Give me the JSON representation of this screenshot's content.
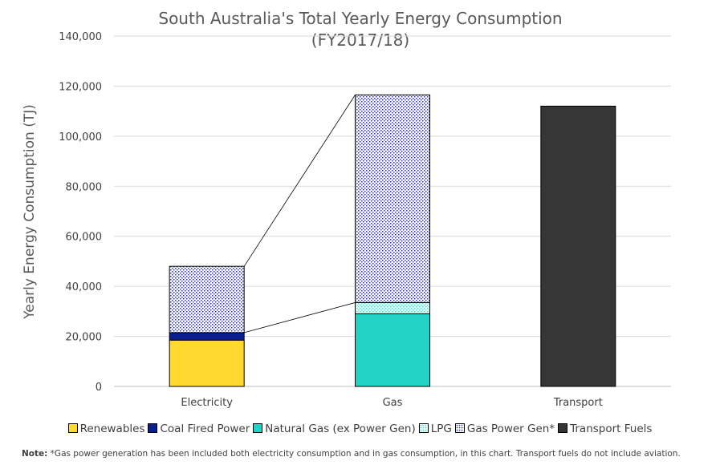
{
  "chart_data": {
    "type": "bar",
    "stacked": true,
    "title": "South Australia's Total Yearly Energy Consumption",
    "subtitle": "(FY2017/18)",
    "xlabel": "",
    "ylabel": "Yearly Energy Consumption (TJ)",
    "ylim": [
      0,
      140000
    ],
    "yticks": [
      0,
      20000,
      40000,
      60000,
      80000,
      100000,
      120000,
      140000
    ],
    "ytick_labels": [
      "0",
      "20,000",
      "40,000",
      "60,000",
      "80,000",
      "100,000",
      "120,000",
      "140,000"
    ],
    "grid": true,
    "legend_position": "bottom",
    "categories": [
      "Electricity",
      "Gas",
      "Transport"
    ],
    "series": [
      {
        "name": "Renewables",
        "color": "#FFD92F",
        "pattern": "solid",
        "values": [
          18500,
          0,
          0
        ]
      },
      {
        "name": "Coal Fired Power",
        "color": "#0A1F8F",
        "pattern": "solid",
        "values": [
          3000,
          0,
          0
        ]
      },
      {
        "name": "Natural Gas (ex Power Gen)",
        "color": "#22D3C5",
        "pattern": "solid",
        "values": [
          0,
          29000,
          0
        ]
      },
      {
        "name": "LPG",
        "color": "#C9F3F0",
        "pattern": "dotted-light",
        "values": [
          0,
          4500,
          0
        ]
      },
      {
        "name": "Gas Power Gen*",
        "color": "#2A37A8",
        "pattern": "dotted-blue",
        "values": [
          26500,
          83000,
          0
        ]
      },
      {
        "name": "Transport Fuels",
        "color": "#363636",
        "pattern": "solid",
        "values": [
          0,
          0,
          112000
        ]
      }
    ]
  },
  "note": {
    "label": "Note:",
    "text": " *Gas power generation has been included both electricity consumption and in gas consumption, in this chart. Transport fuels do not include aviation."
  }
}
